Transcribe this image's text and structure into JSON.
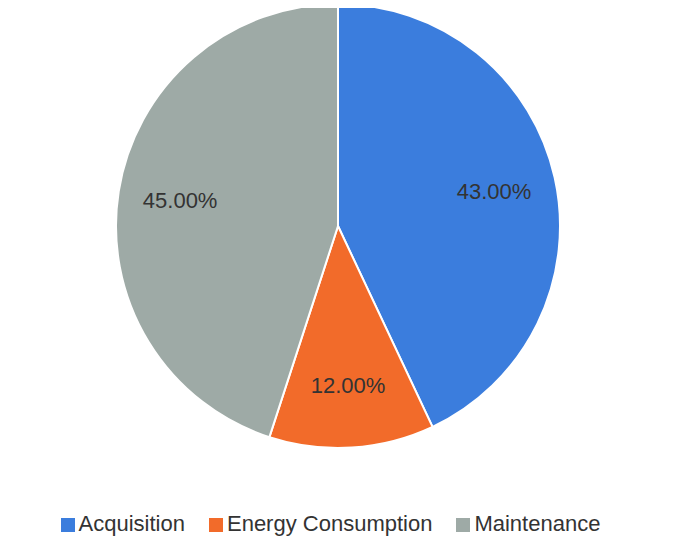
{
  "chart_data": {
    "type": "pie",
    "categories": [
      "Acquisition",
      "Energy Consumption",
      "Maintenance"
    ],
    "values": [
      43,
      12,
      45
    ],
    "value_labels": [
      "43.00%",
      "12.00%",
      "45.00%"
    ],
    "colors": [
      "#3b7ddd",
      "#f26b2a",
      "#9eaaa6"
    ],
    "data_labels": true,
    "legend": "bottom"
  }
}
